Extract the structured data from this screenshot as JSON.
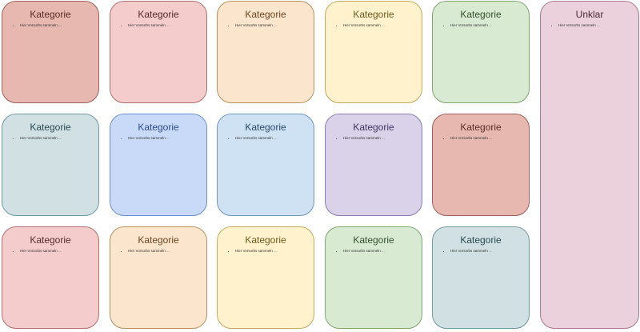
{
  "cards": [
    {
      "title": "Kategorie",
      "item": "Hier Vorsorbs sammeln ...",
      "fill": "#e6b8af",
      "border": "#a0615a",
      "text": "#5a2d28"
    },
    {
      "title": "Kategorie",
      "item": "Hier Vorsorbs sammeln ...",
      "fill": "#f4cccc",
      "border": "#b07070",
      "text": "#5c2a2a"
    },
    {
      "title": "Kategorie",
      "item": "Hier Vorsorbs sammeln ...",
      "fill": "#fce5cd",
      "border": "#b8915e",
      "text": "#6b4520"
    },
    {
      "title": "Kategorie",
      "item": "Hier Vorsorbs sammeln ...",
      "fill": "#fff2cc",
      "border": "#c4aa5c",
      "text": "#6b5a1d"
    },
    {
      "title": "Kategorie",
      "item": "Hier Vorsorbs sammeln ...",
      "fill": "#d9ead3",
      "border": "#7fa570",
      "text": "#33522a"
    },
    {
      "title": "Kategorie",
      "item": "Hier Vorsorbs sammeln ...",
      "fill": "#d0e0e3",
      "border": "#6f9aa2",
      "text": "#2a4a50"
    },
    {
      "title": "Kategorie",
      "item": "Hier Vorsorbs sammeln ...",
      "fill": "#c9daf8",
      "border": "#6b8fd1",
      "text": "#2b4c8c"
    },
    {
      "title": "Kategorie",
      "item": "Hier Vorsorbs sammeln ...",
      "fill": "#cfe2f3",
      "border": "#6e97bd",
      "text": "#2a4966"
    },
    {
      "title": "Kategorie",
      "item": "Hier Vorsorbs sammeln ...",
      "fill": "#d9d2e9",
      "border": "#8b7eb0",
      "text": "#3f3460"
    },
    {
      "title": "Kategorie",
      "item": "Hier Vorsorbs sammeln ...",
      "fill": "#e6b8af",
      "border": "#a0615a",
      "text": "#5a2d28"
    },
    {
      "title": "Kategorie",
      "item": "Hier Vorsorbs sammeln ...",
      "fill": "#f4cccc",
      "border": "#b07070",
      "text": "#5c2a2a"
    },
    {
      "title": "Kategorie",
      "item": "Hier Vorsorbs sammeln ...",
      "fill": "#fce5cd",
      "border": "#b8915e",
      "text": "#6b4520"
    },
    {
      "title": "Kategorie",
      "item": "Hier Vorsorbs sammeln ...",
      "fill": "#fff2cc",
      "border": "#c4aa5c",
      "text": "#6b5a1d"
    },
    {
      "title": "Kategorie",
      "item": "Hier Vorsorbs sammeln ...",
      "fill": "#d9ead3",
      "border": "#7fa570",
      "text": "#33522a"
    },
    {
      "title": "Kategorie",
      "item": "Hier Vorsorbs sammeln ...",
      "fill": "#d0e0e3",
      "border": "#6f9aa2",
      "text": "#2a4a50"
    }
  ],
  "unclear": {
    "title": "Unklar",
    "item": "Hier Vorsorbs sammeln ...",
    "fill": "#ead1dc",
    "border": "#a97a90",
    "text": "#4a2a38"
  }
}
